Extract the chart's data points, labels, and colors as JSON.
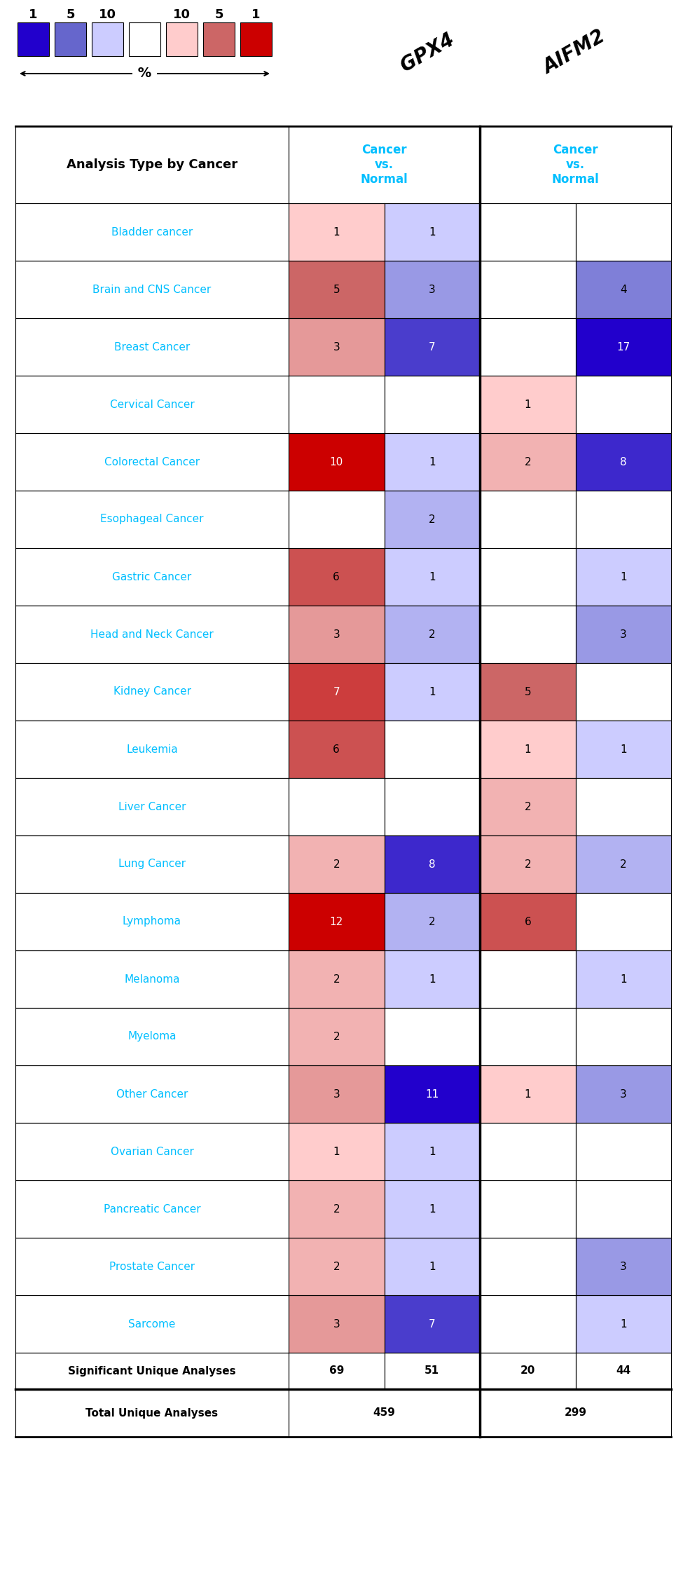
{
  "cancer_types": [
    "Bladder cancer",
    "Brain and CNS Cancer",
    "Breast Cancer",
    "Cervical Cancer",
    "Colorectal Cancer",
    "Esophageal Cancer",
    "Gastric Cancer",
    "Head and Neck Cancer",
    "Kidney Cancer",
    "Leukemia",
    "Liver Cancer",
    "Lung Cancer",
    "Lymphoma",
    "Melanoma",
    "Myeloma",
    "Other Cancer",
    "Ovarian Cancer",
    "Pancreatic Cancer",
    "Prostate Cancer",
    "Sarcome"
  ],
  "gpx4_up": [
    1,
    5,
    3,
    null,
    10,
    null,
    6,
    3,
    7,
    6,
    null,
    2,
    12,
    2,
    2,
    3,
    1,
    2,
    2,
    3
  ],
  "gpx4_down": [
    1,
    3,
    7,
    null,
    1,
    2,
    1,
    2,
    1,
    null,
    null,
    8,
    2,
    1,
    null,
    11,
    1,
    1,
    1,
    7
  ],
  "aifm2_up": [
    null,
    null,
    null,
    1,
    2,
    null,
    null,
    null,
    5,
    1,
    2,
    2,
    6,
    null,
    null,
    1,
    null,
    null,
    null,
    null
  ],
  "aifm2_down": [
    null,
    4,
    17,
    null,
    8,
    null,
    1,
    3,
    null,
    1,
    null,
    2,
    null,
    1,
    null,
    3,
    null,
    null,
    3,
    1
  ],
  "sig_gpx4_up": 69,
  "sig_gpx4_down": 51,
  "sig_aifm2_up": 20,
  "sig_aifm2_down": 44,
  "total_gpx4": 459,
  "total_aifm2": 299,
  "cyan": "#00BFFF",
  "legend_colors": [
    "#2200CC",
    "#6666CC",
    "#CCCCFF",
    "#FFFFFF",
    "#FFCCCC",
    "#CC6666",
    "#CC0000"
  ],
  "legend_nums": [
    "1",
    "5",
    "10",
    "",
    "10",
    "5",
    "1"
  ]
}
